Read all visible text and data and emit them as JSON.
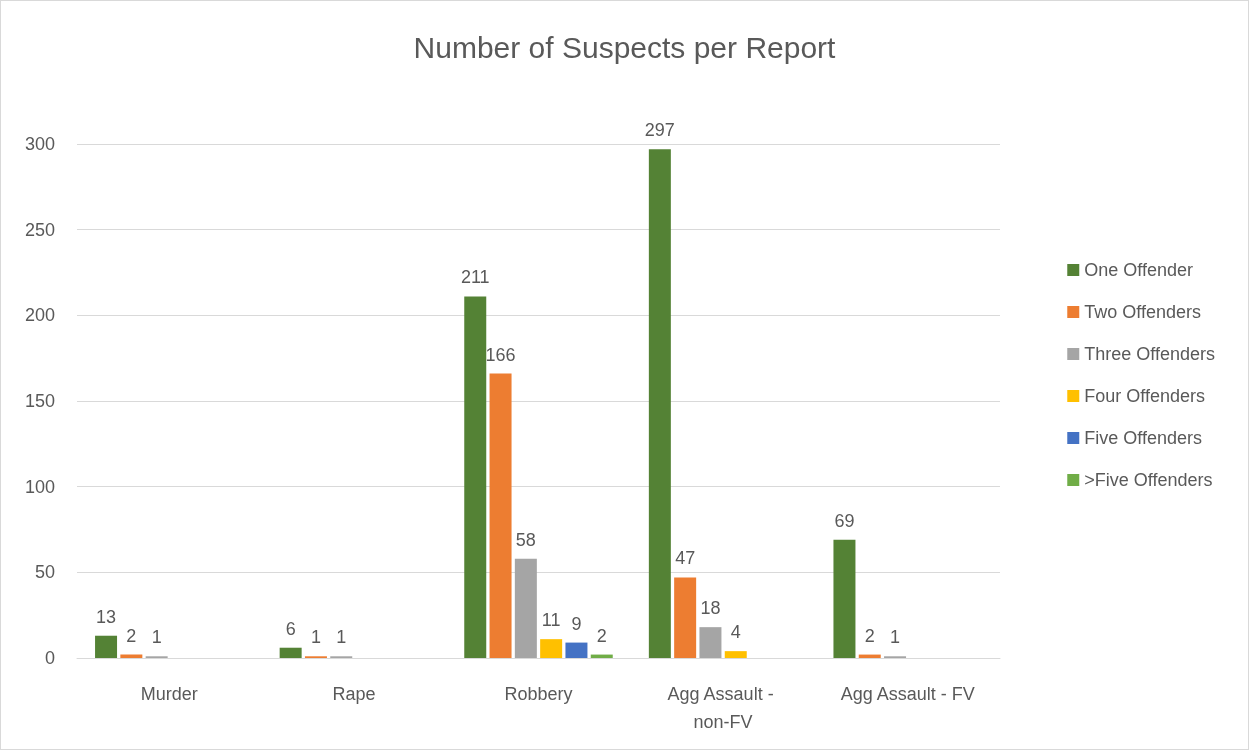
{
  "chart_data": {
    "type": "bar",
    "title": "Number of Suspects per Report",
    "categories": [
      "Murder",
      "Rape",
      "Robbery",
      "Agg Assault - non-FV",
      "Agg Assault - FV"
    ],
    "series": [
      {
        "name": "One Offender",
        "color": "#548235",
        "values": [
          13,
          6,
          211,
          297,
          69
        ]
      },
      {
        "name": "Two Offenders",
        "color": "#ed7d31",
        "values": [
          2,
          1,
          166,
          47,
          2
        ]
      },
      {
        "name": "Three Offenders",
        "color": "#a5a5a5",
        "values": [
          1,
          1,
          58,
          18,
          1
        ]
      },
      {
        "name": "Four Offenders",
        "color": "#ffc000",
        "values": [
          null,
          null,
          11,
          4,
          null
        ]
      },
      {
        "name": "Five Offenders",
        "color": "#4472c4",
        "values": [
          null,
          null,
          9,
          null,
          null
        ]
      },
      {
        "name": ">Five Offenders",
        "color": "#70ad47",
        "values": [
          null,
          null,
          2,
          null,
          null
        ]
      }
    ],
    "ylim": [
      0,
      300
    ],
    "yticks": [
      0,
      50,
      100,
      150,
      200,
      250,
      300
    ],
    "grid": "y",
    "legend": "right",
    "data_labels": true
  }
}
